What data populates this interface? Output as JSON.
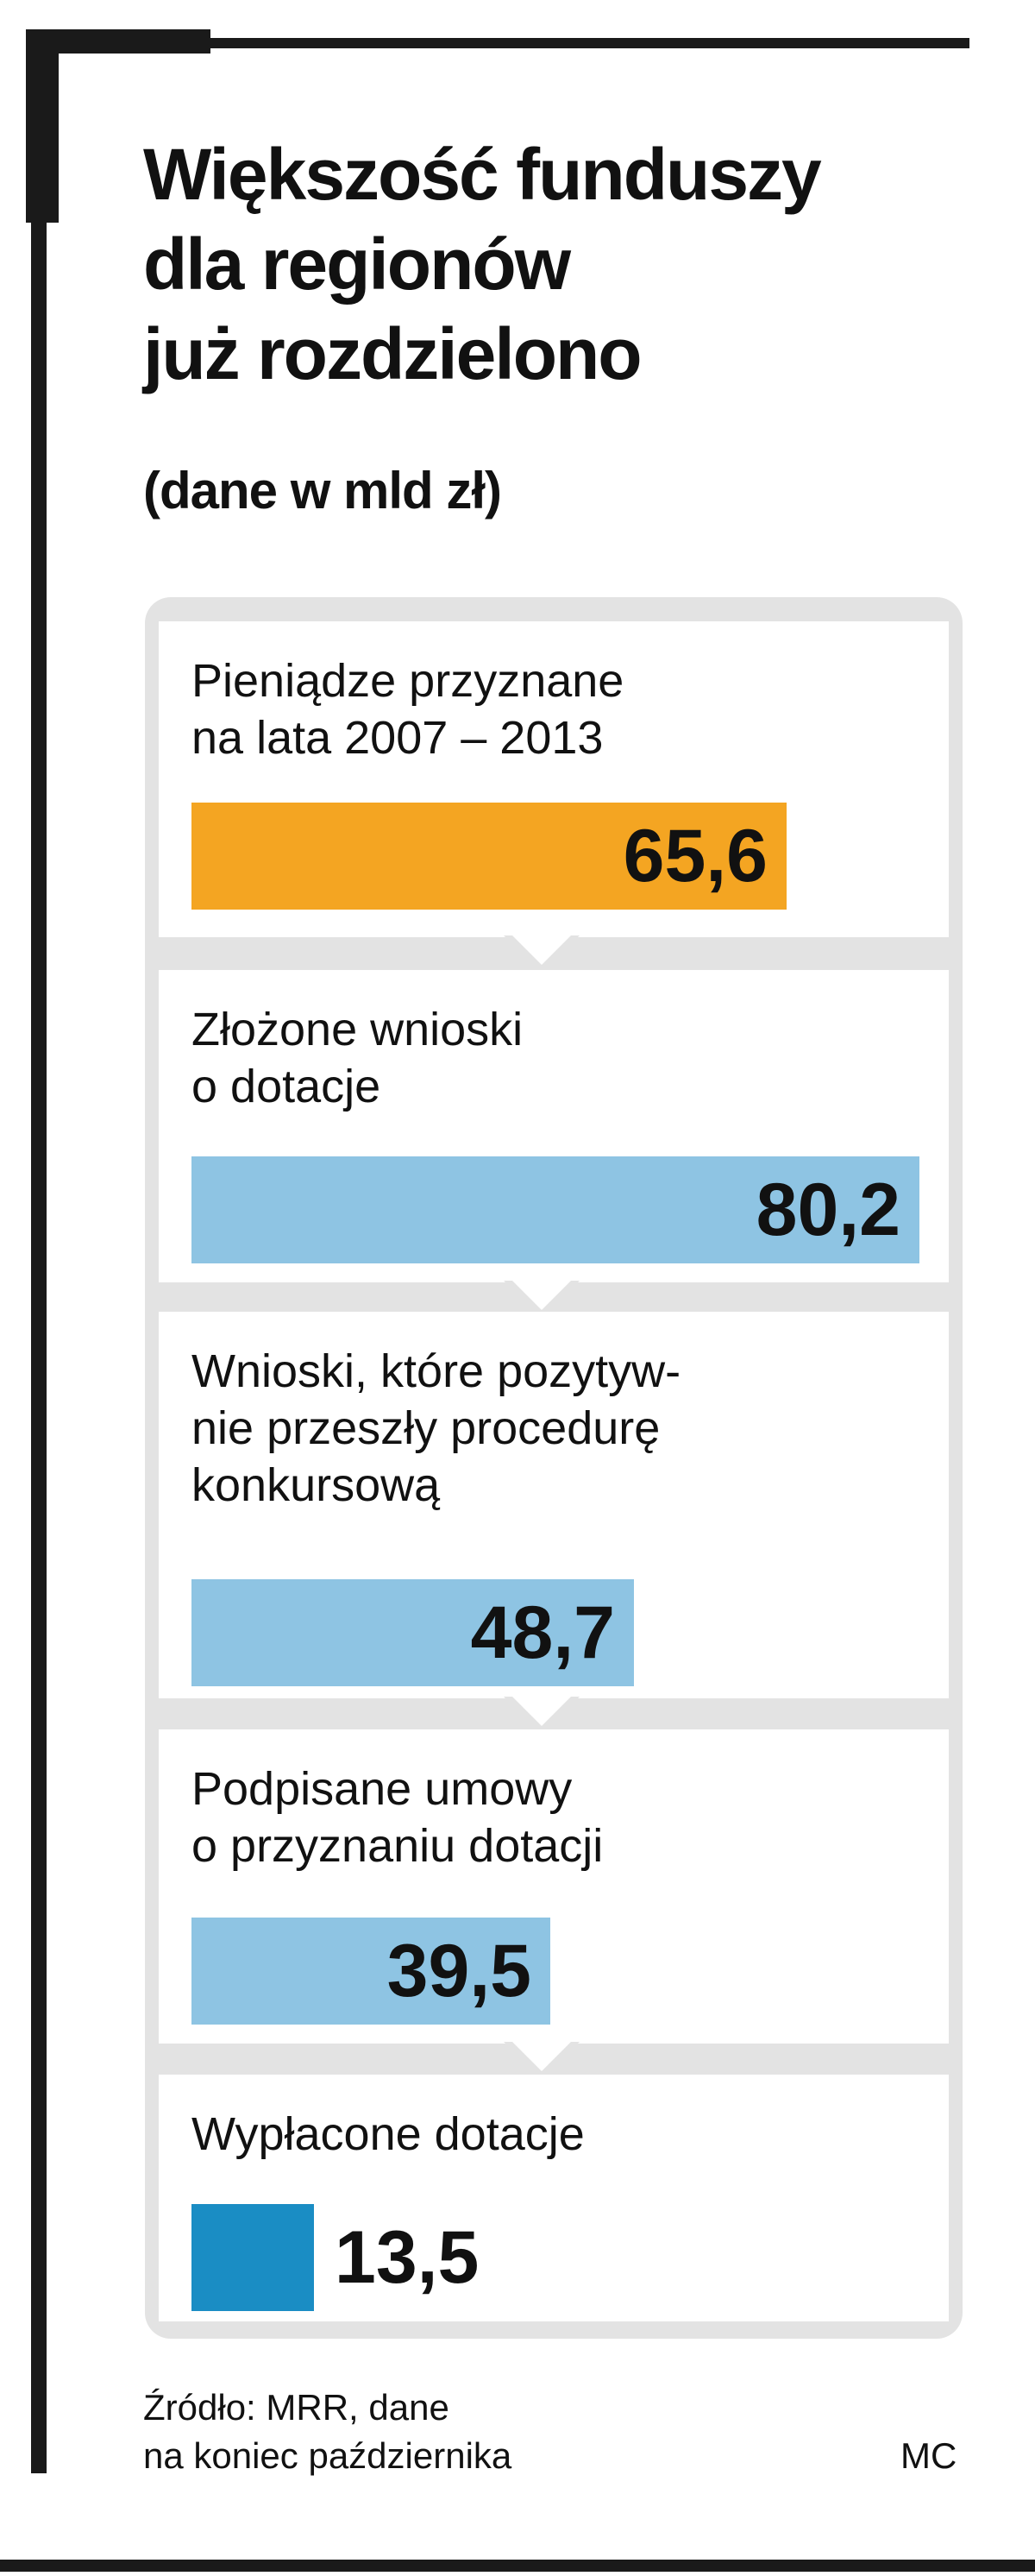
{
  "header": {
    "title_lines": [
      "Większość funduszy",
      "dla regionów",
      "już rozdzielono"
    ],
    "subtitle": "(dane w mld zł)"
  },
  "chart_data": {
    "type": "bar",
    "orientation": "horizontal",
    "title": "Większość funduszy dla regionów już rozdzielono",
    "subtitle": "(dane w mld zł)",
    "categories": [
      "Pieniądze przyznane na lata 2007 – 2013",
      "Złożone wnioski o dotacje",
      "Wnioski, które pozytywnie przeszły procedurę konkursową",
      "Podpisane umowy o przyznaniu dotacji",
      "Wypłacone dotacje"
    ],
    "category_label_lines": [
      [
        "Pieniądze przyznane",
        "na lata 2007 – 2013"
      ],
      [
        "Złożone wnioski",
        "o dotacje"
      ],
      [
        "Wnioski, które pozytyw-",
        "nie przeszły procedurę",
        "konkursową"
      ],
      [
        "Podpisane umowy",
        "o przyznaniu dotacji"
      ],
      [
        "Wypłacone dotacje"
      ]
    ],
    "values": [
      65.6,
      80.2,
      48.7,
      39.5,
      13.5
    ],
    "value_labels": [
      "65,6",
      "80,2",
      "48,7",
      "39,5",
      "13,5"
    ],
    "colors": [
      "#f4a522",
      "#8ec4e3",
      "#8ec4e3",
      "#8ec4e3",
      "#1a8dc4"
    ],
    "xlim": [
      0,
      80.2
    ],
    "grid": false,
    "legend": "none"
  },
  "footer": {
    "source_lines": [
      "Źródło: MRR, dane",
      "na koniec października"
    ],
    "author": "MC"
  }
}
